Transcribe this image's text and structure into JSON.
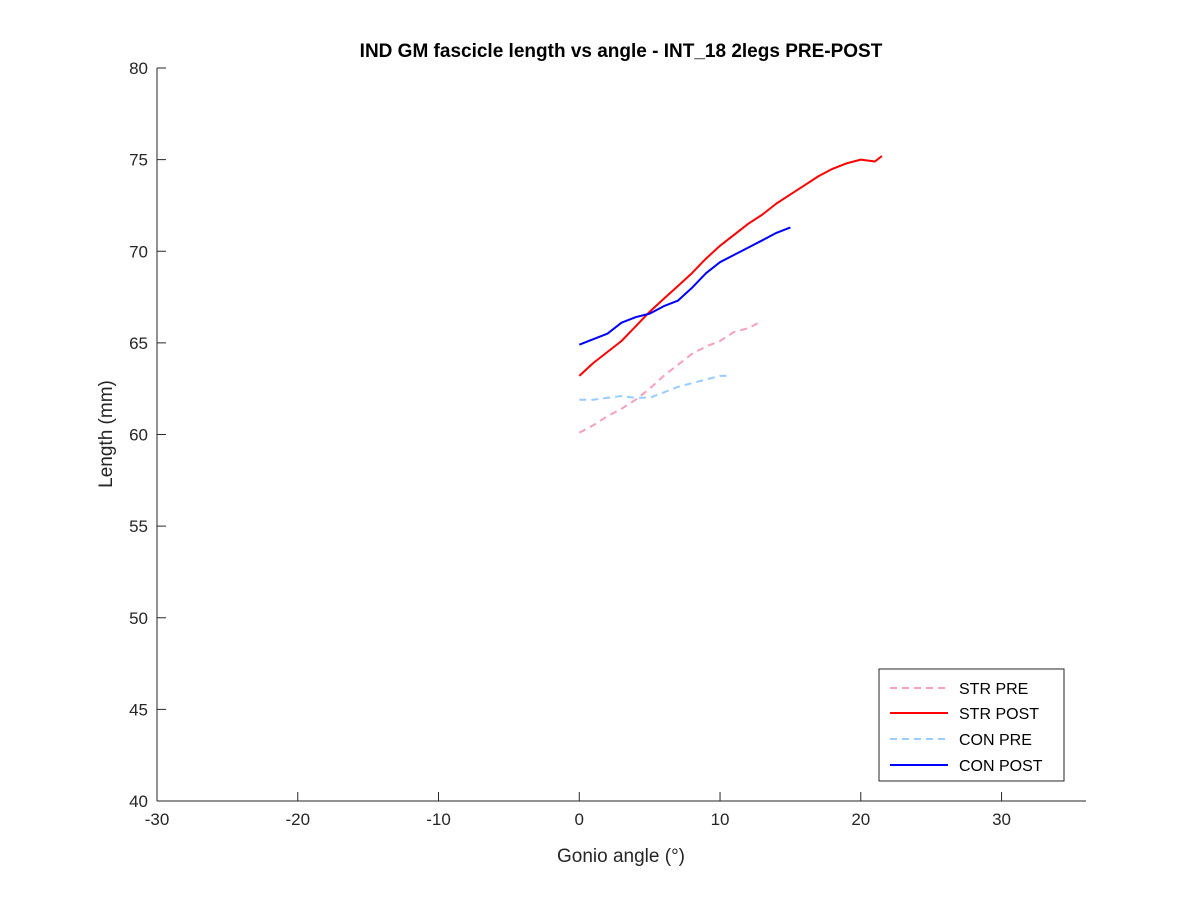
{
  "chart_data": {
    "type": "line",
    "title": "IND GM fascicle length vs angle - INT_18 2legs PRE-POST",
    "xlabel": "Gonio angle (°)",
    "ylabel": "Length (mm)",
    "xlim": [
      -30,
      36
    ],
    "ylim": [
      40,
      80
    ],
    "xticks": [
      -30,
      -20,
      -10,
      0,
      10,
      20,
      30
    ],
    "xtick_labels": [
      "-30",
      "-20",
      "-10",
      "0",
      "10",
      "20",
      "30"
    ],
    "yticks": [
      40,
      45,
      50,
      55,
      60,
      65,
      70,
      75,
      80
    ],
    "ytick_labels": [
      "40",
      "45",
      "50",
      "55",
      "60",
      "65",
      "70",
      "75",
      "80"
    ],
    "grid": false,
    "legend_position": "bottom-right",
    "series": [
      {
        "name": "STR PRE",
        "color": "#f4a0be",
        "dash": "dashed",
        "x": [
          0,
          1,
          2,
          3,
          4,
          5,
          6,
          7,
          8,
          9,
          10,
          11,
          12,
          13
        ],
        "y": [
          60.1,
          60.5,
          61.0,
          61.4,
          61.9,
          62.5,
          63.2,
          63.8,
          64.4,
          64.8,
          65.1,
          65.6,
          65.8,
          66.2
        ]
      },
      {
        "name": "STR POST",
        "color": "#ff0000",
        "dash": "solid",
        "x": [
          0,
          1,
          2,
          3,
          4,
          5,
          6,
          7,
          8,
          9,
          10,
          11,
          12,
          13,
          14,
          15,
          16,
          17,
          18,
          19,
          20,
          21,
          21.5
        ],
        "y": [
          63.2,
          63.9,
          64.5,
          65.1,
          65.9,
          66.7,
          67.4,
          68.1,
          68.8,
          69.6,
          70.3,
          70.9,
          71.5,
          72.0,
          72.6,
          73.1,
          73.6,
          74.1,
          74.5,
          74.8,
          75.0,
          74.9,
          75.2
        ]
      },
      {
        "name": "CON PRE",
        "color": "#99ccff",
        "dash": "dashed",
        "x": [
          0,
          1,
          2,
          3,
          4,
          5,
          6,
          7,
          8,
          9,
          10,
          10.5
        ],
        "y": [
          61.9,
          61.9,
          62.0,
          62.1,
          62.0,
          62.0,
          62.3,
          62.6,
          62.8,
          63.0,
          63.2,
          63.2
        ]
      },
      {
        "name": "CON POST",
        "color": "#0000ff",
        "dash": "solid",
        "x": [
          0,
          1,
          2,
          3,
          4,
          5,
          6,
          7,
          8,
          9,
          10,
          11,
          12,
          13,
          14,
          15
        ],
        "y": [
          64.9,
          65.2,
          65.5,
          66.1,
          66.4,
          66.6,
          67.0,
          67.3,
          68.0,
          68.8,
          69.4,
          69.8,
          70.2,
          70.6,
          71.0,
          71.3
        ]
      }
    ]
  }
}
